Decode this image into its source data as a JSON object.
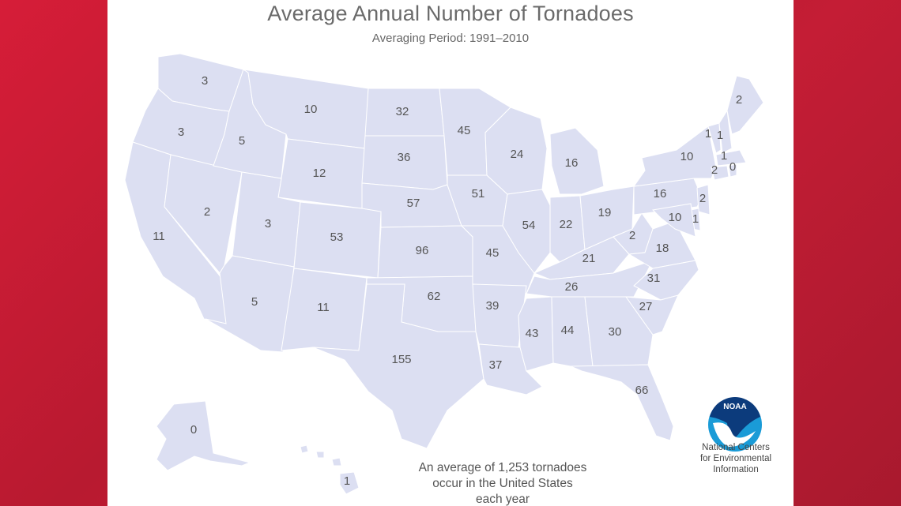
{
  "title": "Average Annual Number of Tornadoes",
  "subtitle": "Averaging Period:  1991–2010",
  "caption": [
    "An average of 1,253 tornadoes",
    "occur in the United States",
    "each year"
  ],
  "logo_text": "NOAA",
  "org": [
    "National Centers",
    "for Environmental",
    "Information"
  ],
  "colors": {
    "background": "#c81f35",
    "land": "#dcdff2",
    "text": "#555555"
  },
  "states": {
    "WA": "3",
    "OR": "3",
    "CA": "11",
    "NV": "2",
    "ID": "5",
    "MT": "10",
    "WY": "12",
    "UT": "3",
    "AZ": "5",
    "CO": "53",
    "NM": "11",
    "ND": "32",
    "SD": "36",
    "NE": "57",
    "KS": "96",
    "OK": "62",
    "TX": "155",
    "MN": "45",
    "IA": "51",
    "MO": "45",
    "AR": "39",
    "LA": "37",
    "WI": "24",
    "IL": "54",
    "MS": "43",
    "MI": "16",
    "IN": "22",
    "KY": "21",
    "TN": "26",
    "AL": "44",
    "GA": "30",
    "FL": "66",
    "OH": "19",
    "WV": "2",
    "VA": "18",
    "NC": "31",
    "SC": "27",
    "PA": "16",
    "NY": "10",
    "VT": "1",
    "NH": "1",
    "ME": "2",
    "MA": "1",
    "CT": "2",
    "RI": "0",
    "NJ": "2",
    "DE": "1",
    "MD": "10",
    "AK": "0",
    "HI": "1"
  }
}
